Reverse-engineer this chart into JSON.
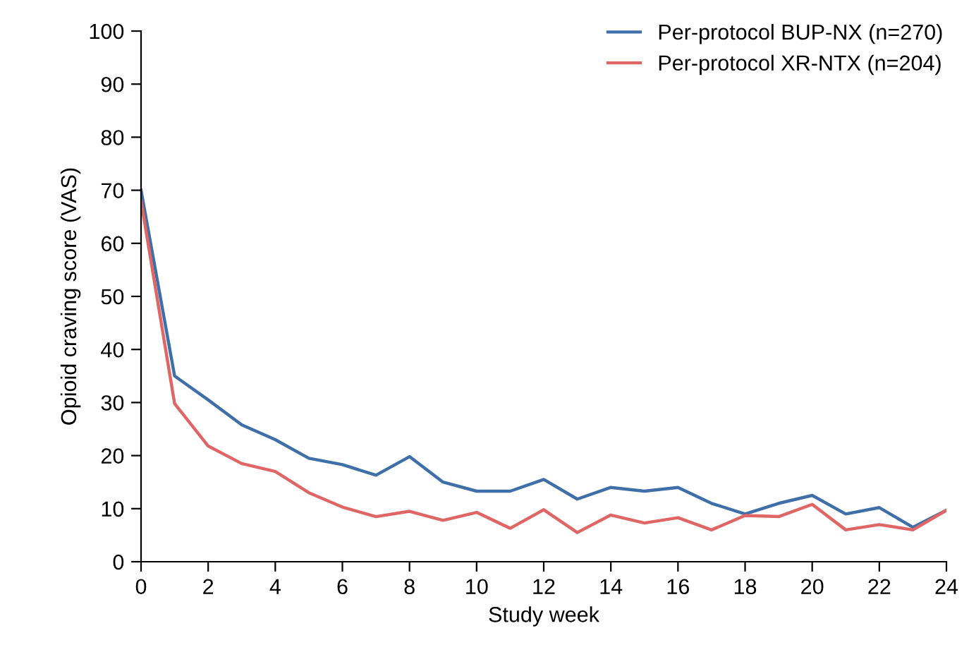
{
  "chart_data": {
    "type": "line",
    "xlabel": "Study week",
    "ylabel": "Opioid craving score (VAS)",
    "x": [
      0,
      1,
      2,
      3,
      4,
      5,
      6,
      7,
      8,
      9,
      10,
      11,
      12,
      13,
      14,
      15,
      16,
      17,
      18,
      19,
      20,
      21,
      22,
      23,
      24
    ],
    "series": [
      {
        "name": "Per-protocol BUP-NX (n=270)",
        "color": "#3e6fa8",
        "values": [
          70,
          35,
          30.5,
          25.8,
          23,
          19.5,
          18.3,
          16.3,
          19.8,
          15,
          13.3,
          13.3,
          15.5,
          11.8,
          14,
          13.3,
          14,
          11,
          9,
          11,
          12.5,
          9,
          10.2,
          6.5,
          9.7
        ]
      },
      {
        "name": "Per-protocol XR-NTX (n=204)",
        "color": "#e06666",
        "values": [
          68,
          29.8,
          21.8,
          18.5,
          17,
          13,
          10.3,
          8.5,
          9.5,
          7.8,
          9.3,
          6.3,
          9.8,
          5.5,
          8.8,
          7.3,
          8.3,
          6,
          8.7,
          8.5,
          10.8,
          6,
          7,
          6,
          9.7
        ]
      }
    ],
    "xlim": [
      0,
      24
    ],
    "xticks": [
      0,
      2,
      4,
      6,
      8,
      10,
      12,
      14,
      16,
      18,
      20,
      22,
      24
    ],
    "ylim": [
      0,
      100
    ],
    "yticks": [
      0,
      10,
      20,
      30,
      40,
      50,
      60,
      70,
      80,
      90,
      100
    ],
    "grid": false,
    "legend": "top right",
    "marker": "none",
    "line_style": "solid"
  }
}
